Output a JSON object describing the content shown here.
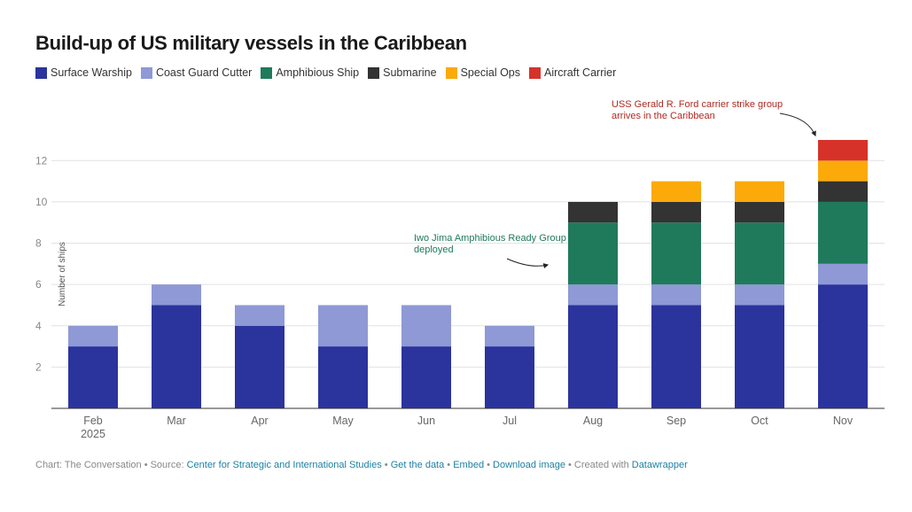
{
  "header": {
    "title": "Build-up of US military vessels in the Caribbean"
  },
  "colors": {
    "Surface Warship": "#2b339d",
    "Coast Guard Cutter": "#8e99d6",
    "Amphibious Ship": "#1f7a5c",
    "Submarine": "#333333",
    "Special Ops": "#fbaa0a",
    "Aircraft Carrier": "#d6322a",
    "annotation_red": "#b02a21",
    "annotation_green": "#1f7a5c"
  },
  "chart_data": {
    "type": "bar",
    "stacked": true,
    "categories": [
      "Feb",
      "Mar",
      "Apr",
      "May",
      "Jun",
      "Jul",
      "Aug",
      "Sep",
      "Oct",
      "Nov"
    ],
    "category_sublabels": [
      "2025",
      "",
      "",
      "",
      "",
      "",
      "",
      "",
      "",
      ""
    ],
    "series": [
      {
        "name": "Surface Warship",
        "values": [
          3,
          5,
          4,
          3,
          3,
          3,
          5,
          5,
          5,
          6
        ]
      },
      {
        "name": "Coast Guard Cutter",
        "values": [
          1,
          1,
          1,
          2,
          2,
          1,
          1,
          1,
          1,
          1
        ]
      },
      {
        "name": "Amphibious Ship",
        "values": [
          0,
          0,
          0,
          0,
          0,
          0,
          3,
          3,
          3,
          3
        ]
      },
      {
        "name": "Submarine",
        "values": [
          0,
          0,
          0,
          0,
          0,
          0,
          1,
          1,
          1,
          1
        ]
      },
      {
        "name": "Special Ops",
        "values": [
          0,
          0,
          0,
          0,
          0,
          0,
          0,
          1,
          1,
          1
        ]
      },
      {
        "name": "Aircraft Carrier",
        "values": [
          0,
          0,
          0,
          0,
          0,
          0,
          0,
          0,
          0,
          1
        ]
      }
    ],
    "ylabel": "Number of ships",
    "ylim": [
      0,
      13
    ],
    "yticks": [
      2,
      4,
      6,
      8,
      10,
      12
    ],
    "grid": true,
    "legend_position": "top-left",
    "annotations": [
      {
        "text_lines": [
          "USS Gerald R. Ford carrier strike group",
          "arrives in the Caribbean"
        ],
        "category": "Nov",
        "color": "annotation_red"
      },
      {
        "text_lines": [
          "Iwo Jima Amphibious Ready Group",
          "deployed"
        ],
        "category": "Aug",
        "color": "annotation_green"
      }
    ]
  },
  "footer": {
    "prefix": "Chart: The Conversation • Source: ",
    "source_link": "Center for Strategic and International Studies",
    "sep1": " • ",
    "get_data": "Get the data",
    "sep2": " • ",
    "embed": "Embed",
    "sep3": "  • ",
    "download": "Download image",
    "sep4": " • Created with ",
    "datawrapper": "Datawrapper"
  }
}
